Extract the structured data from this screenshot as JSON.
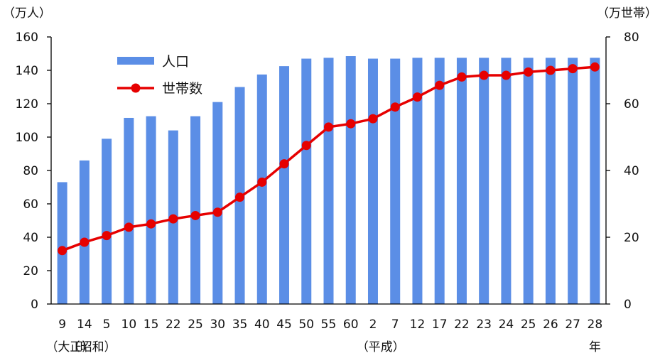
{
  "chart_data": {
    "type": "bar+line",
    "title": "",
    "y_left_unit": "（万人）",
    "y_right_unit": "（万世帯）",
    "ylim_left": [
      0,
      160
    ],
    "ylim_right": [
      0,
      80
    ],
    "yticks_left": [
      "0",
      "20",
      "40",
      "60",
      "80",
      "100",
      "120",
      "140",
      "160"
    ],
    "yticks_right": [
      "0",
      "20",
      "40",
      "60",
      "80"
    ],
    "categories": [
      "9",
      "14",
      "5",
      "10",
      "15",
      "22",
      "25",
      "30",
      "35",
      "40",
      "45",
      "50",
      "55",
      "60",
      "2",
      "7",
      "12",
      "17",
      "22",
      "23",
      "24",
      "25",
      "26",
      "27",
      "28"
    ],
    "era_labels": [
      {
        "text": "（大正）",
        "from_index": 0
      },
      {
        "text": "（昭和）",
        "from_index": 1
      },
      {
        "text": "（平成）",
        "from_index": 14
      }
    ],
    "year_suffix": "年",
    "legend_position": "top-left",
    "grid": false,
    "series": [
      {
        "name": "人口",
        "type": "bar",
        "axis": "left",
        "color": "#5b8ee6",
        "values": [
          73,
          86,
          99,
          111.5,
          112.5,
          104,
          112.5,
          121,
          130,
          137.5,
          142.5,
          147,
          147.5,
          148.5,
          147,
          147,
          147.5,
          147.5,
          147.5,
          147.5,
          147.5,
          147.5,
          147.5,
          147.5,
          147.5
        ]
      },
      {
        "name": "世帯数",
        "type": "line",
        "axis": "right",
        "color": "#e60000",
        "values": [
          16,
          18.5,
          20.5,
          23,
          24,
          25.5,
          26.5,
          27.5,
          32,
          36.5,
          42,
          47.5,
          53,
          54,
          55.5,
          59,
          62,
          65.5,
          68,
          68.5,
          68.5,
          69.5,
          70,
          70.5,
          71
        ]
      }
    ]
  }
}
